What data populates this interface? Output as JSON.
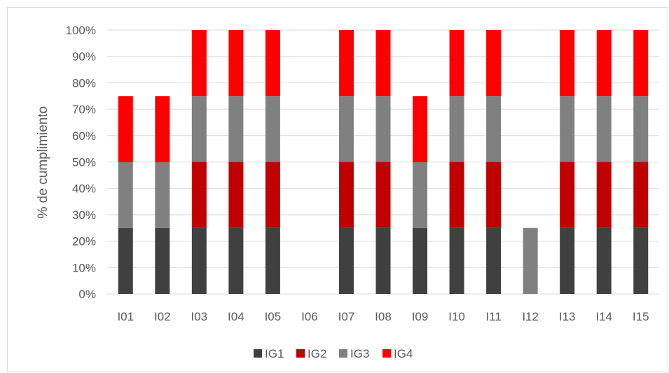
{
  "chart_data": {
    "type": "bar",
    "stacked": true,
    "title": "",
    "xlabel": "",
    "ylabel": "% de cumplimiento",
    "ylim": [
      0,
      100
    ],
    "yticks": [
      "0%",
      "10%",
      "20%",
      "30%",
      "40%",
      "50%",
      "60%",
      "70%",
      "80%",
      "90%",
      "100%"
    ],
    "grid": true,
    "legend_position": "bottom",
    "categories": [
      "I01",
      "I02",
      "I03",
      "I04",
      "I05",
      "I06",
      "I07",
      "I08",
      "I09",
      "I10",
      "I11",
      "I12",
      "I13",
      "I14",
      "I15"
    ],
    "series": [
      {
        "name": "IG1",
        "color": "#404040",
        "values": [
          25,
          25,
          25,
          25,
          25,
          0,
          25,
          25,
          25,
          25,
          25,
          0,
          25,
          25,
          25
        ]
      },
      {
        "name": "IG2",
        "color": "#c00000",
        "values": [
          0,
          0,
          25,
          25,
          25,
          0,
          25,
          25,
          0,
          25,
          25,
          0,
          25,
          25,
          25
        ]
      },
      {
        "name": "IG3",
        "color": "#808080",
        "values": [
          25,
          25,
          25,
          25,
          25,
          0,
          25,
          25,
          25,
          25,
          25,
          25,
          25,
          25,
          25
        ]
      },
      {
        "name": "IG4",
        "color": "#ff0000",
        "values": [
          25,
          25,
          25,
          25,
          25,
          0,
          25,
          25,
          25,
          25,
          25,
          0,
          25,
          25,
          25
        ]
      }
    ]
  }
}
